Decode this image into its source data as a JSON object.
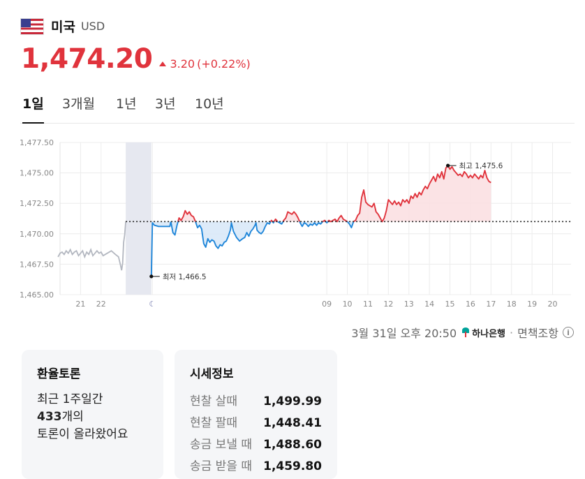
{
  "header": {
    "country": "미국",
    "currency": "USD",
    "price": "1,474.20",
    "change": "3.20",
    "change_pct": "(+0.22%)"
  },
  "tabs": [
    {
      "label": "1일",
      "active": true
    },
    {
      "label": "3개월",
      "active": false
    },
    {
      "label": "1년",
      "active": false
    },
    {
      "label": "3년",
      "active": false
    },
    {
      "label": "10년",
      "active": false
    }
  ],
  "chart_data": {
    "type": "line",
    "ylim": [
      1465.0,
      1477.5
    ],
    "y_ticks": [
      "1,465.00",
      "1,467.50",
      "1,470.00",
      "1,472.50",
      "1,475.00",
      "1,477.50"
    ],
    "x_ticks": [
      "21",
      "22",
      "☾",
      "09",
      "10",
      "11",
      "12",
      "13",
      "14",
      "15",
      "16",
      "17",
      "18",
      "19",
      "20"
    ],
    "x_tick_hours": [
      21,
      22,
      24.5,
      33,
      34,
      35,
      36,
      37,
      38,
      39,
      40,
      41,
      42,
      43,
      44
    ],
    "x_range": [
      20.0,
      44.9
    ],
    "gap_band_hours": [
      23.2,
      24.45
    ],
    "reference_value": 1471.0,
    "grid": true,
    "colors": {
      "up": "#e0333c",
      "down": "#1f86d9",
      "pre": "#b3b7c0",
      "up_fill": "#fbe0e2",
      "down_fill": "#d9e9f8",
      "band": "#e6e8f0"
    },
    "pre_series": [
      [
        19.9,
        1468.1
      ],
      [
        20.0,
        1468.4
      ],
      [
        20.1,
        1468.5
      ],
      [
        20.2,
        1468.3
      ],
      [
        20.3,
        1468.6
      ],
      [
        20.4,
        1468.4
      ],
      [
        20.5,
        1468.7
      ],
      [
        20.6,
        1468.3
      ],
      [
        20.7,
        1468.5
      ],
      [
        20.8,
        1468.6
      ],
      [
        20.9,
        1468.2
      ],
      [
        21.0,
        1468.4
      ],
      [
        21.1,
        1468.6
      ],
      [
        21.2,
        1468.1
      ],
      [
        21.3,
        1468.5
      ],
      [
        21.4,
        1468.3
      ],
      [
        21.5,
        1468.7
      ],
      [
        21.6,
        1468.2
      ],
      [
        21.7,
        1468.4
      ],
      [
        21.8,
        1468.6
      ],
      [
        21.9,
        1468.4
      ],
      [
        22.0,
        1468.5
      ],
      [
        22.1,
        1468.2
      ],
      [
        22.3,
        1468.4
      ],
      [
        22.5,
        1468.6
      ],
      [
        22.7,
        1468.3
      ],
      [
        22.85,
        1468.1
      ],
      [
        22.95,
        1467.4
      ],
      [
        23.0,
        1467.0
      ],
      [
        23.05,
        1467.6
      ],
      [
        23.1,
        1469.3
      ],
      [
        23.15,
        1469.9
      ],
      [
        23.2,
        1471.0
      ]
    ],
    "series": [
      [
        24.45,
        1466.5
      ],
      [
        24.5,
        1470.9
      ],
      [
        24.6,
        1470.7
      ],
      [
        24.8,
        1470.6
      ],
      [
        25.0,
        1470.6
      ],
      [
        25.2,
        1470.6
      ],
      [
        25.35,
        1470.6
      ],
      [
        25.4,
        1471.0
      ],
      [
        25.5,
        1470.1
      ],
      [
        25.6,
        1469.9
      ],
      [
        25.7,
        1470.7
      ],
      [
        25.8,
        1471.3
      ],
      [
        25.9,
        1471.1
      ],
      [
        26.0,
        1471.4
      ],
      [
        26.1,
        1471.9
      ],
      [
        26.2,
        1471.6
      ],
      [
        26.3,
        1471.8
      ],
      [
        26.4,
        1471.5
      ],
      [
        26.5,
        1471.4
      ],
      [
        26.6,
        1471.0
      ],
      [
        26.7,
        1470.5
      ],
      [
        26.8,
        1470.7
      ],
      [
        26.9,
        1470.4
      ],
      [
        27.0,
        1469.2
      ],
      [
        27.1,
        1468.9
      ],
      [
        27.2,
        1469.6
      ],
      [
        27.3,
        1469.3
      ],
      [
        27.4,
        1469.5
      ],
      [
        27.5,
        1469.4
      ],
      [
        27.6,
        1469.0
      ],
      [
        27.7,
        1468.8
      ],
      [
        27.8,
        1469.1
      ],
      [
        27.9,
        1469.0
      ],
      [
        28.0,
        1469.3
      ],
      [
        28.1,
        1469.4
      ],
      [
        28.2,
        1469.8
      ],
      [
        28.3,
        1470.3
      ],
      [
        28.35,
        1470.9
      ],
      [
        28.45,
        1470.2
      ],
      [
        28.6,
        1469.7
      ],
      [
        28.75,
        1469.4
      ],
      [
        28.9,
        1469.6
      ],
      [
        29.0,
        1469.7
      ],
      [
        29.1,
        1470.1
      ],
      [
        29.2,
        1469.8
      ],
      [
        29.3,
        1470.2
      ],
      [
        29.4,
        1470.4
      ],
      [
        29.5,
        1470.7
      ],
      [
        29.55,
        1470.9
      ],
      [
        29.6,
        1470.3
      ],
      [
        29.7,
        1470.1
      ],
      [
        29.8,
        1470.0
      ],
      [
        29.9,
        1470.2
      ],
      [
        30.0,
        1470.6
      ],
      [
        30.1,
        1470.9
      ],
      [
        30.2,
        1470.8
      ],
      [
        30.3,
        1471.1
      ],
      [
        30.4,
        1470.9
      ],
      [
        30.5,
        1471.2
      ],
      [
        30.6,
        1471.0
      ],
      [
        30.7,
        1470.9
      ],
      [
        30.8,
        1470.8
      ],
      [
        30.9,
        1471.1
      ],
      [
        31.0,
        1471.3
      ],
      [
        31.1,
        1471.8
      ],
      [
        31.2,
        1471.7
      ],
      [
        31.3,
        1471.6
      ],
      [
        31.4,
        1471.8
      ],
      [
        31.5,
        1471.6
      ],
      [
        31.6,
        1471.3
      ],
      [
        31.7,
        1470.9
      ],
      [
        31.8,
        1470.6
      ],
      [
        31.9,
        1470.9
      ],
      [
        32.0,
        1470.8
      ],
      [
        32.1,
        1470.6
      ],
      [
        32.2,
        1470.8
      ],
      [
        32.3,
        1470.7
      ],
      [
        32.4,
        1470.9
      ],
      [
        32.5,
        1470.7
      ],
      [
        32.6,
        1470.9
      ],
      [
        32.7,
        1470.8
      ],
      [
        32.8,
        1471.0
      ],
      [
        32.9,
        1471.1
      ],
      [
        33.0,
        1470.9
      ],
      [
        33.1,
        1471.1
      ],
      [
        33.2,
        1471.0
      ],
      [
        33.3,
        1471.1
      ],
      [
        33.4,
        1471.2
      ],
      [
        33.5,
        1471.0
      ],
      [
        33.6,
        1471.3
      ],
      [
        33.7,
        1471.5
      ],
      [
        33.8,
        1471.2
      ],
      [
        33.9,
        1471.1
      ],
      [
        34.0,
        1471.0
      ],
      [
        34.1,
        1470.8
      ],
      [
        34.2,
        1470.5
      ],
      [
        34.3,
        1471.0
      ],
      [
        34.4,
        1471.1
      ],
      [
        34.5,
        1471.5
      ],
      [
        34.6,
        1471.7
      ],
      [
        34.7,
        1473.0
      ],
      [
        34.8,
        1473.6
      ],
      [
        34.9,
        1472.6
      ],
      [
        35.0,
        1472.4
      ],
      [
        35.1,
        1472.3
      ],
      [
        35.2,
        1472.2
      ],
      [
        35.3,
        1472.5
      ],
      [
        35.4,
        1471.8
      ],
      [
        35.5,
        1471.6
      ],
      [
        35.6,
        1471.3
      ],
      [
        35.7,
        1471.0
      ],
      [
        35.8,
        1471.3
      ],
      [
        35.9,
        1471.9
      ],
      [
        36.0,
        1472.8
      ],
      [
        36.1,
        1472.6
      ],
      [
        36.2,
        1472.4
      ],
      [
        36.3,
        1472.7
      ],
      [
        36.4,
        1472.4
      ],
      [
        36.5,
        1472.6
      ],
      [
        36.6,
        1472.3
      ],
      [
        36.7,
        1472.8
      ],
      [
        36.8,
        1472.6
      ],
      [
        36.9,
        1472.8
      ],
      [
        37.0,
        1472.5
      ],
      [
        37.1,
        1473.1
      ],
      [
        37.2,
        1472.9
      ],
      [
        37.3,
        1473.3
      ],
      [
        37.4,
        1473.0
      ],
      [
        37.5,
        1473.4
      ],
      [
        37.6,
        1473.2
      ],
      [
        37.7,
        1473.6
      ],
      [
        37.8,
        1473.9
      ],
      [
        37.9,
        1473.7
      ],
      [
        38.0,
        1474.1
      ],
      [
        38.1,
        1474.4
      ],
      [
        38.2,
        1474.7
      ],
      [
        38.3,
        1474.3
      ],
      [
        38.4,
        1474.9
      ],
      [
        38.5,
        1474.6
      ],
      [
        38.6,
        1475.1
      ],
      [
        38.7,
        1474.5
      ],
      [
        38.8,
        1475.4
      ],
      [
        38.9,
        1475.6
      ],
      [
        39.0,
        1475.3
      ],
      [
        39.1,
        1475.5
      ],
      [
        39.2,
        1475.2
      ],
      [
        39.3,
        1475.0
      ],
      [
        39.4,
        1474.8
      ],
      [
        39.5,
        1474.9
      ],
      [
        39.6,
        1474.7
      ],
      [
        39.7,
        1475.1
      ],
      [
        39.8,
        1474.9
      ],
      [
        39.9,
        1474.6
      ],
      [
        40.0,
        1474.8
      ],
      [
        40.1,
        1474.6
      ],
      [
        40.2,
        1474.9
      ],
      [
        40.3,
        1474.7
      ],
      [
        40.4,
        1474.5
      ],
      [
        40.5,
        1474.8
      ],
      [
        40.6,
        1474.6
      ],
      [
        40.7,
        1475.2
      ],
      [
        40.8,
        1474.6
      ],
      [
        40.9,
        1474.3
      ],
      [
        41.0,
        1474.2
      ]
    ],
    "low_label": "최저 1,466.5",
    "high_label": "최고 1,475.6"
  },
  "stamp": {
    "date": "3월 31일 오후 20:50",
    "bank": "하나은행",
    "separator": "·",
    "disclaimer": "면책조항",
    "info_icon": "i"
  },
  "card_discussion": {
    "title": "환율토론",
    "line1": "최근 1주일간",
    "count": "433",
    "count_suffix": "개의",
    "line3": "토론이 올라왔어요"
  },
  "card_quote": {
    "title": "시세정보",
    "rows": [
      {
        "label": "현찰 살때",
        "value": "1,499.99"
      },
      {
        "label": "현찰 팔때",
        "value": "1,448.41"
      },
      {
        "label": "송금 보낼 때",
        "value": "1,488.60"
      },
      {
        "label": "송금 받을 때",
        "value": "1,459.80"
      }
    ]
  }
}
